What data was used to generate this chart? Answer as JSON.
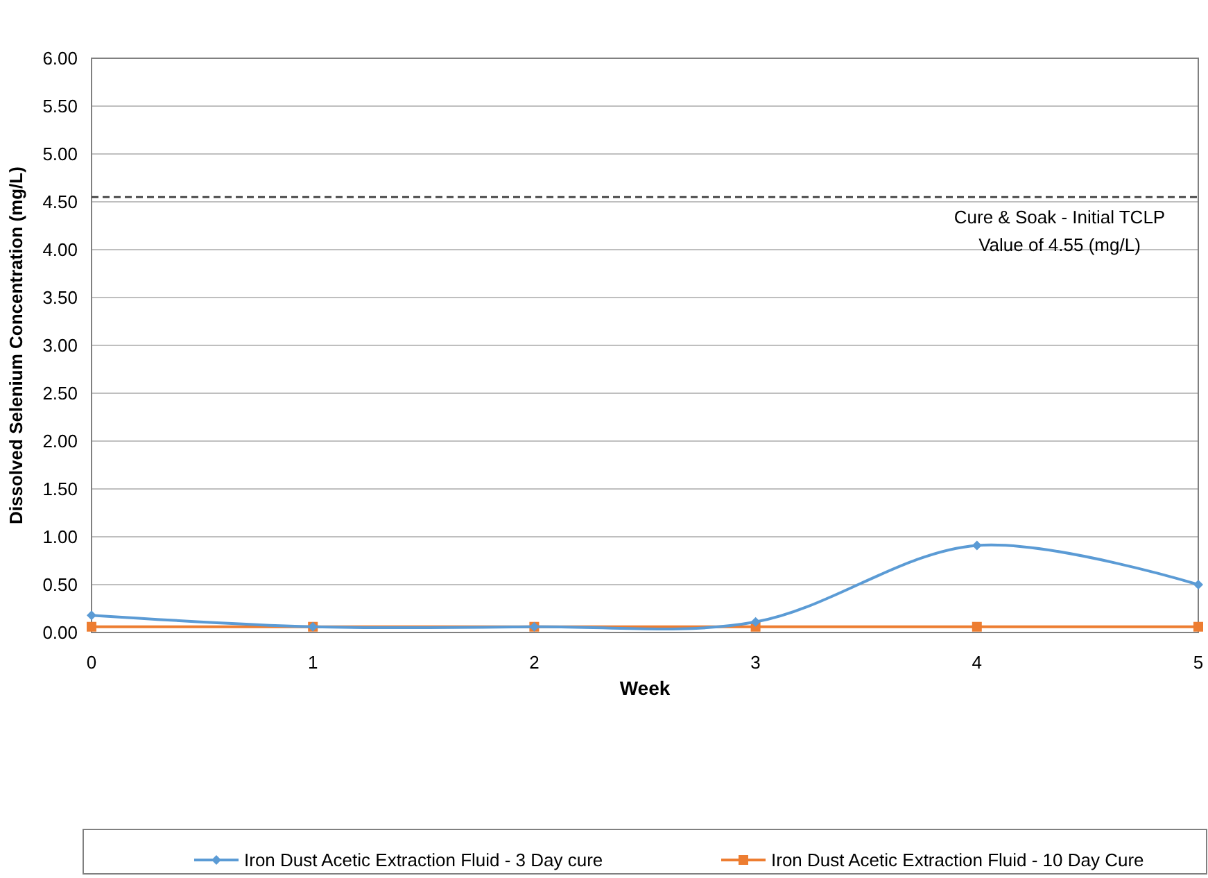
{
  "chart_data": {
    "type": "line",
    "xlabel": "Week",
    "ylabel": "Dissolved Selenium Concentration (mg/L)",
    "x": [
      0,
      1,
      2,
      3,
      4,
      5
    ],
    "xlim": [
      0,
      5
    ],
    "xticks": [
      0,
      1,
      2,
      3,
      4,
      5
    ],
    "ylim": [
      0,
      6
    ],
    "yticks": [
      {
        "value": 0,
        "label": "0.00"
      },
      {
        "value": 0.5,
        "label": "0.50"
      },
      {
        "value": 1,
        "label": "1.00"
      },
      {
        "value": 1.5,
        "label": "1.50"
      },
      {
        "value": 2,
        "label": "2.00"
      },
      {
        "value": 2.5,
        "label": "2.50"
      },
      {
        "value": 3,
        "label": "3.00"
      },
      {
        "value": 3.5,
        "label": "3.50"
      },
      {
        "value": 4,
        "label": "4.00"
      },
      {
        "value": 4.5,
        "label": "4.50"
      },
      {
        "value": 5,
        "label": "5.00"
      },
      {
        "value": 5.5,
        "label": "5.50"
      },
      {
        "value": 6,
        "label": "6.00"
      }
    ],
    "grid": "y",
    "legend": "bottom",
    "series": [
      {
        "name": "Iron Dust Acetic Extraction Fluid - 3 Day cure",
        "color": "#5b9bd5",
        "marker": "diamond",
        "values": [
          0.18,
          0.06,
          0.06,
          0.11,
          0.91,
          0.5
        ]
      },
      {
        "name": "Iron Dust Acetic Extraction Fluid - 10 Day Cure",
        "color": "#ed7d31",
        "marker": "square",
        "values": [
          0.06,
          0.06,
          0.06,
          0.06,
          0.06,
          0.06
        ]
      }
    ],
    "ref_lines": [
      {
        "axis": "y",
        "value": 4.55,
        "label": "Cure & Soak - Initial TCLP Value of 4.55 (mg/L)",
        "color": "#404040",
        "line_style": "dashed"
      }
    ]
  }
}
